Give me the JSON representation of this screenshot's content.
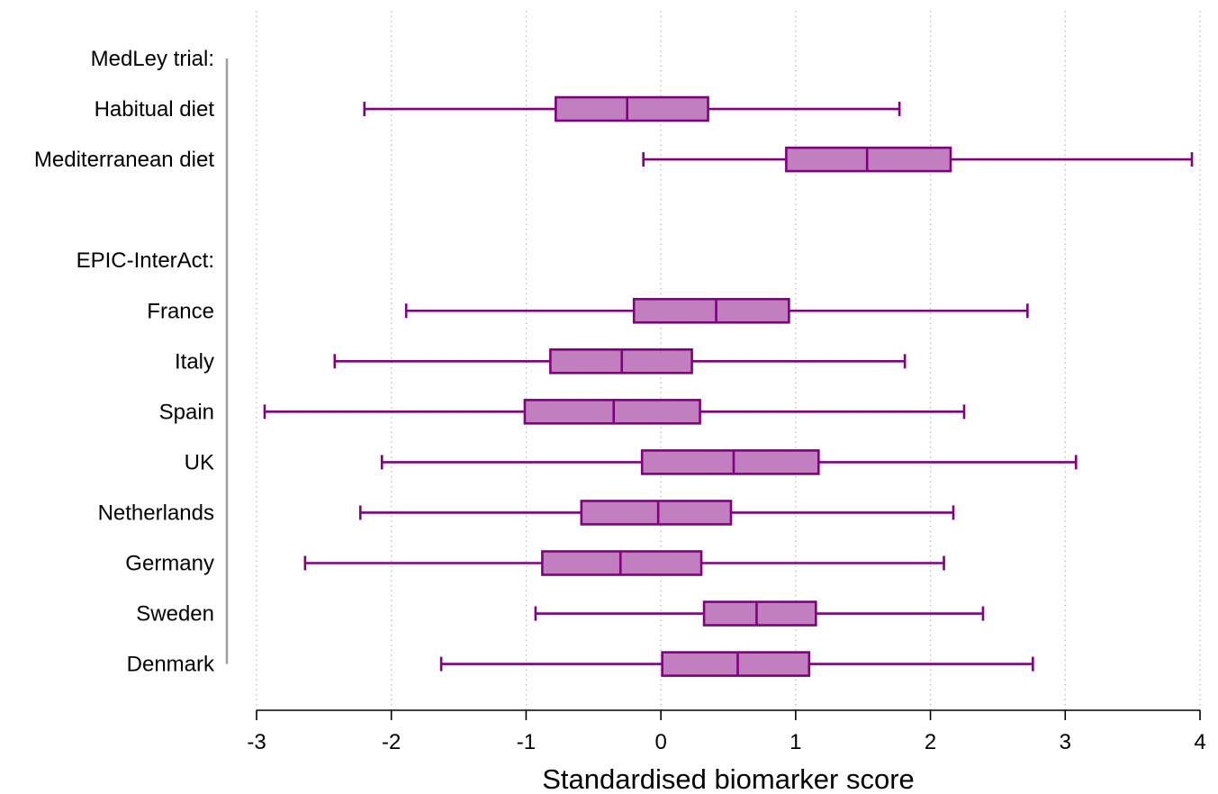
{
  "chart_data": {
    "type": "boxplot",
    "orientation": "horizontal",
    "xlabel": "Standardised biomarker score",
    "xlim": [
      -3,
      4
    ],
    "xticks": [
      -3,
      -2,
      -1,
      0,
      1,
      2,
      3,
      4
    ],
    "xtick_labels": [
      "-3",
      "-2",
      "-1",
      "0",
      "1",
      "2",
      "3",
      "4"
    ],
    "grid": "vertical dotted",
    "colors": {
      "box_fill": "#c17fbf",
      "box_stroke": "#800080",
      "grid": "#bdbdbd",
      "bracket": "#9e9e9e",
      "axis": "#000000"
    },
    "groups": [
      {
        "label": "MedLey trial:",
        "rows": [
          {
            "label": "Habitual diet",
            "whisker_low": -2.2,
            "q1": -0.78,
            "median": -0.25,
            "q3": 0.35,
            "whisker_high": 1.77
          },
          {
            "label": "Mediterranean diet",
            "whisker_low": -0.13,
            "q1": 0.93,
            "median": 1.53,
            "q3": 2.15,
            "whisker_high": 3.94
          }
        ]
      },
      {
        "label": "EPIC-InterAct:",
        "rows": [
          {
            "label": "France",
            "whisker_low": -1.89,
            "q1": -0.2,
            "median": 0.41,
            "q3": 0.95,
            "whisker_high": 2.72
          },
          {
            "label": "Italy",
            "whisker_low": -2.42,
            "q1": -0.82,
            "median": -0.29,
            "q3": 0.23,
            "whisker_high": 1.81
          },
          {
            "label": "Spain",
            "whisker_low": -2.94,
            "q1": -1.01,
            "median": -0.35,
            "q3": 0.29,
            "whisker_high": 2.25
          },
          {
            "label": "UK",
            "whisker_low": -2.07,
            "q1": -0.14,
            "median": 0.54,
            "q3": 1.17,
            "whisker_high": 3.08
          },
          {
            "label": "Netherlands",
            "whisker_low": -2.23,
            "q1": -0.59,
            "median": -0.02,
            "q3": 0.52,
            "whisker_high": 2.17
          },
          {
            "label": "Germany",
            "whisker_low": -2.64,
            "q1": -0.88,
            "median": -0.3,
            "q3": 0.3,
            "whisker_high": 2.1
          },
          {
            "label": "Sweden",
            "whisker_low": -0.93,
            "q1": 0.32,
            "median": 0.71,
            "q3": 1.15,
            "whisker_high": 2.39
          },
          {
            "label": "Denmark",
            "whisker_low": -1.63,
            "q1": 0.01,
            "median": 0.57,
            "q3": 1.1,
            "whisker_high": 2.76
          }
        ]
      }
    ]
  }
}
